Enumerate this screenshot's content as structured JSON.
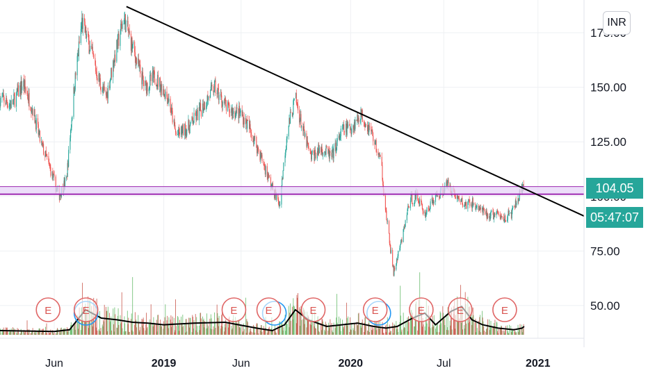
{
  "currency": "INR",
  "colors": {
    "up": "#26a69a",
    "down": "#ef5350",
    "trendline": "#000000",
    "support_band_fill": "#e5d3f7",
    "support_line": "#9c27b0",
    "volume_ma": "#000000",
    "earnings": "#e06666",
    "dividend": "#2196f3",
    "grid": "#eef0f3",
    "tag": "#26a69a"
  },
  "price_tag": {
    "value": "104.05",
    "countdown": "05:47:07"
  },
  "chart_data": {
    "type": "candlestick",
    "title": "",
    "xlabel": "",
    "ylabel": "",
    "ylim": [
      35,
      190
    ],
    "y_ticks": [
      "175.00",
      "150.00",
      "125.00",
      "100.00",
      "75.00",
      "50.00"
    ],
    "y_tick_values": [
      175,
      150,
      125,
      100,
      75,
      50
    ],
    "x_ticks": [
      {
        "label": "Jun",
        "date": "2018-06-01",
        "bold": false
      },
      {
        "label": "2019",
        "date": "2019-01-01",
        "bold": true
      },
      {
        "label": "Jun",
        "date": "2019-06-01",
        "bold": false
      },
      {
        "label": "2020",
        "date": "2020-01-01",
        "bold": true
      },
      {
        "label": "Jul",
        "date": "2020-07-01",
        "bold": false
      },
      {
        "label": "2021",
        "date": "2021-01-01",
        "bold": true
      }
    ],
    "xlim": [
      "2018-02-15",
      "2021-04-01"
    ],
    "price_path": [
      [
        "2018-02-15",
        145
      ],
      [
        "2018-03-10",
        142
      ],
      [
        "2018-04-01",
        152
      ],
      [
        "2018-04-20",
        140
      ],
      [
        "2018-05-05",
        125
      ],
      [
        "2018-05-25",
        112
      ],
      [
        "2018-06-10",
        100
      ],
      [
        "2018-06-25",
        108
      ],
      [
        "2018-07-10",
        150
      ],
      [
        "2018-07-25",
        180
      ],
      [
        "2018-08-10",
        168
      ],
      [
        "2018-08-25",
        155
      ],
      [
        "2018-09-10",
        145
      ],
      [
        "2018-09-25",
        162
      ],
      [
        "2018-10-15",
        182
      ],
      [
        "2018-11-05",
        165
      ],
      [
        "2018-11-25",
        150
      ],
      [
        "2018-12-15",
        155
      ],
      [
        "2019-01-10",
        145
      ],
      [
        "2019-01-25",
        128
      ],
      [
        "2019-02-20",
        132
      ],
      [
        "2019-03-15",
        140
      ],
      [
        "2019-04-10",
        150
      ],
      [
        "2019-05-05",
        140
      ],
      [
        "2019-06-01",
        138
      ],
      [
        "2019-06-20",
        130
      ],
      [
        "2019-07-10",
        118
      ],
      [
        "2019-07-30",
        105
      ],
      [
        "2019-08-15",
        96
      ],
      [
        "2019-08-30",
        130
      ],
      [
        "2019-09-15",
        145
      ],
      [
        "2019-09-30",
        130
      ],
      [
        "2019-10-15",
        118
      ],
      [
        "2019-11-05",
        122
      ],
      [
        "2019-11-25",
        118
      ],
      [
        "2019-12-15",
        130
      ],
      [
        "2020-01-05",
        132
      ],
      [
        "2020-01-20",
        138
      ],
      [
        "2020-02-10",
        130
      ],
      [
        "2020-03-01",
        115
      ],
      [
        "2020-03-10",
        92
      ],
      [
        "2020-03-25",
        65
      ],
      [
        "2020-04-10",
        80
      ],
      [
        "2020-04-25",
        98
      ],
      [
        "2020-05-10",
        100
      ],
      [
        "2020-05-25",
        92
      ],
      [
        "2020-06-10",
        98
      ],
      [
        "2020-06-25",
        102
      ],
      [
        "2020-07-10",
        106
      ],
      [
        "2020-07-25",
        100
      ],
      [
        "2020-08-10",
        96
      ],
      [
        "2020-08-25",
        97
      ],
      [
        "2020-09-10",
        94
      ],
      [
        "2020-09-25",
        91
      ],
      [
        "2020-10-10",
        92
      ],
      [
        "2020-10-25",
        90
      ],
      [
        "2020-11-10",
        92
      ],
      [
        "2020-11-25",
        100
      ],
      [
        "2020-12-05",
        104
      ]
    ],
    "annotations": {
      "trendline": {
        "from": [
          "2018-10-20",
          187
        ],
        "to": [
          "2021-04-01",
          91
        ]
      },
      "resistance_band": [
        101,
        104.5
      ],
      "support_line": 101,
      "earnings_dates": [
        "2018-05-20",
        "2018-08-02",
        "2019-05-18",
        "2019-07-25",
        "2019-10-20",
        "2020-02-18",
        "2020-05-18",
        "2020-08-02",
        "2020-10-28"
      ],
      "earnings_label": "E",
      "dividend_dates": [
        "2018-08-02",
        "2019-08-05",
        "2020-02-25"
      ]
    },
    "volume_ma": [
      [
        "2018-02-15",
        0.05
      ],
      [
        "2018-06-01",
        0.04
      ],
      [
        "2018-07-01",
        0.06
      ],
      [
        "2018-08-01",
        0.3
      ],
      [
        "2018-09-01",
        0.2
      ],
      [
        "2018-10-01",
        0.18
      ],
      [
        "2018-11-01",
        0.15
      ],
      [
        "2018-12-01",
        0.14
      ],
      [
        "2019-01-01",
        0.12
      ],
      [
        "2019-03-01",
        0.14
      ],
      [
        "2019-05-01",
        0.15
      ],
      [
        "2019-07-01",
        0.08
      ],
      [
        "2019-08-01",
        0.05
      ],
      [
        "2019-08-25",
        0.12
      ],
      [
        "2019-09-15",
        0.3
      ],
      [
        "2019-10-10",
        0.18
      ],
      [
        "2019-11-15",
        0.1
      ],
      [
        "2019-12-15",
        0.12
      ],
      [
        "2020-01-15",
        0.14
      ],
      [
        "2020-02-15",
        0.1
      ],
      [
        "2020-03-10",
        0.08
      ],
      [
        "2020-04-01",
        0.1
      ],
      [
        "2020-05-01",
        0.2
      ],
      [
        "2020-05-25",
        0.26
      ],
      [
        "2020-06-15",
        0.12
      ],
      [
        "2020-07-15",
        0.28
      ],
      [
        "2020-08-05",
        0.34
      ],
      [
        "2020-08-25",
        0.18
      ],
      [
        "2020-09-15",
        0.12
      ],
      [
        "2020-10-15",
        0.08
      ],
      [
        "2020-11-15",
        0.06
      ],
      [
        "2020-12-01",
        0.08
      ],
      [
        "2020-12-05",
        0.1
      ]
    ]
  }
}
